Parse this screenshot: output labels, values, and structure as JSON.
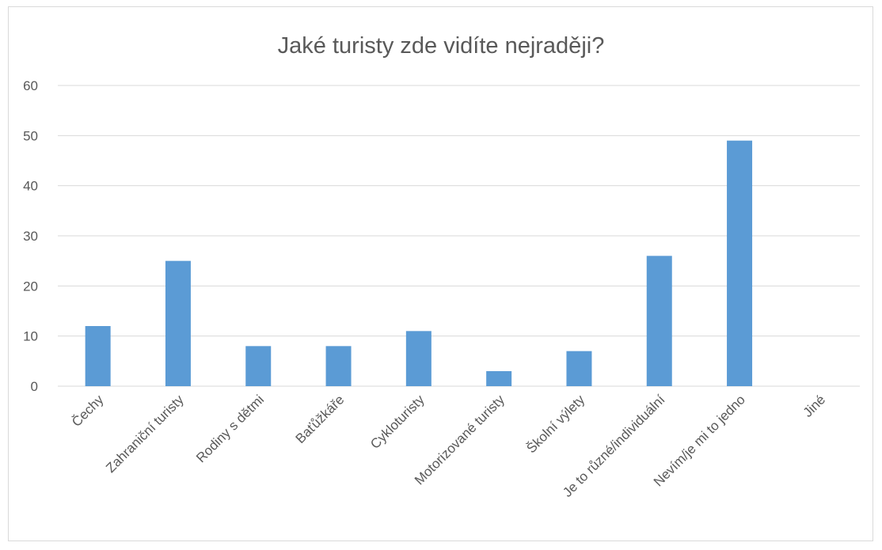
{
  "chart_data": {
    "type": "bar",
    "title": "Jaké turisty zde vidíte nejraději?",
    "xlabel": "",
    "ylabel": "",
    "categories": [
      "Čechy",
      "Zahraniční turisty",
      "Rodiny s dětmi",
      "Baťůžkáře",
      "Cykloturisty",
      "Motorizované turisty",
      "Školní výlety",
      "Je to různé/individuální",
      "Nevím/je mi to jedno",
      "Jiné"
    ],
    "values": [
      12,
      25,
      8,
      8,
      11,
      3,
      7,
      26,
      49,
      0
    ],
    "ylim": [
      0,
      60
    ],
    "yticks": [
      0,
      10,
      20,
      30,
      40,
      50,
      60
    ],
    "grid": true,
    "legend": "none",
    "bar_color": "#5b9bd5"
  }
}
